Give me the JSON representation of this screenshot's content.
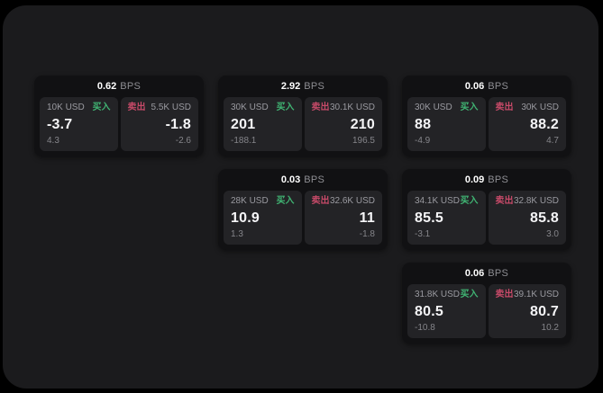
{
  "labels": {
    "bps": "BPS",
    "buy": "买入",
    "sell": "卖出"
  },
  "colors": {
    "background": "#000000",
    "surface": "#1b1b1d",
    "card": "#111113",
    "panel": "#232326",
    "buy_green": "#40b473",
    "sell_red": "#c64a68",
    "text_primary": "#f5f5f7",
    "text_muted": "#9a9aa0"
  },
  "columns": [
    {
      "cards": [
        {
          "bps_value": "0.62",
          "buy": {
            "amount": "10K USD",
            "price": "-3.7",
            "change": "4.3"
          },
          "sell": {
            "amount": "5.5K USD",
            "price": "-1.8",
            "change": "-2.6"
          }
        }
      ]
    },
    {
      "cards": [
        {
          "bps_value": "2.92",
          "buy": {
            "amount": "30K USD",
            "price": "201",
            "change": "-188.1"
          },
          "sell": {
            "amount": "30.1K USD",
            "price": "210",
            "change": "196.5"
          }
        },
        {
          "bps_value": "0.03",
          "buy": {
            "amount": "28K USD",
            "price": "10.9",
            "change": "1.3"
          },
          "sell": {
            "amount": "32.6K USD",
            "price": "11",
            "change": "-1.8"
          }
        }
      ]
    },
    {
      "cards": [
        {
          "bps_value": "0.06",
          "buy": {
            "amount": "30K USD",
            "price": "88",
            "change": "-4.9"
          },
          "sell": {
            "amount": "30K USD",
            "price": "88.2",
            "change": "4.7"
          }
        },
        {
          "bps_value": "0.09",
          "buy": {
            "amount": "34.1K USD",
            "price": "85.5",
            "change": "-3.1"
          },
          "sell": {
            "amount": "32.8K USD",
            "price": "85.8",
            "change": "3.0"
          }
        },
        {
          "bps_value": "0.06",
          "buy": {
            "amount": "31.8K USD",
            "price": "80.5",
            "change": "-10.8"
          },
          "sell": {
            "amount": "39.1K USD",
            "price": "80.7",
            "change": "10.2"
          }
        }
      ]
    }
  ]
}
